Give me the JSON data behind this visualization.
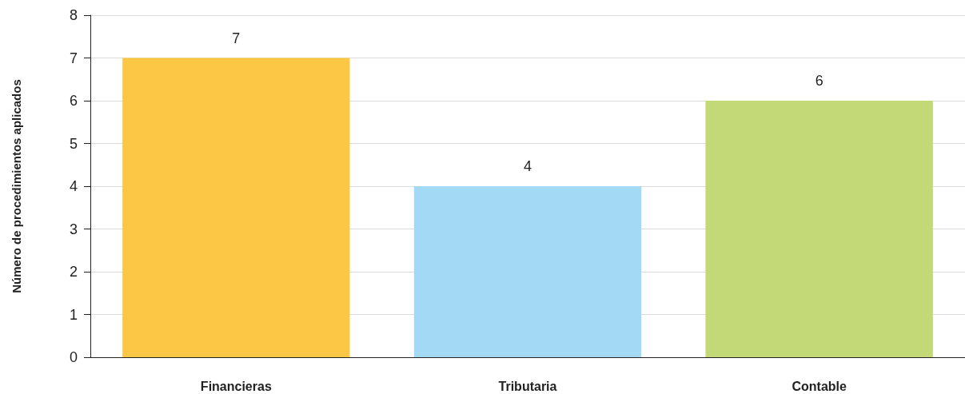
{
  "chart_data": {
    "type": "bar",
    "ylabel": "Número de procedimientos aplicados",
    "categories": [
      "Financieras",
      "Tributaria",
      "Contable"
    ],
    "values": [
      7,
      4,
      6
    ],
    "colors": [
      "#fcc745",
      "#a3d9f5",
      "#c3d877"
    ],
    "ylim": [
      0,
      8
    ],
    "yticks": [
      0,
      1,
      2,
      3,
      4,
      5,
      6,
      7,
      8
    ],
    "grid": "y",
    "data_labels": true
  }
}
